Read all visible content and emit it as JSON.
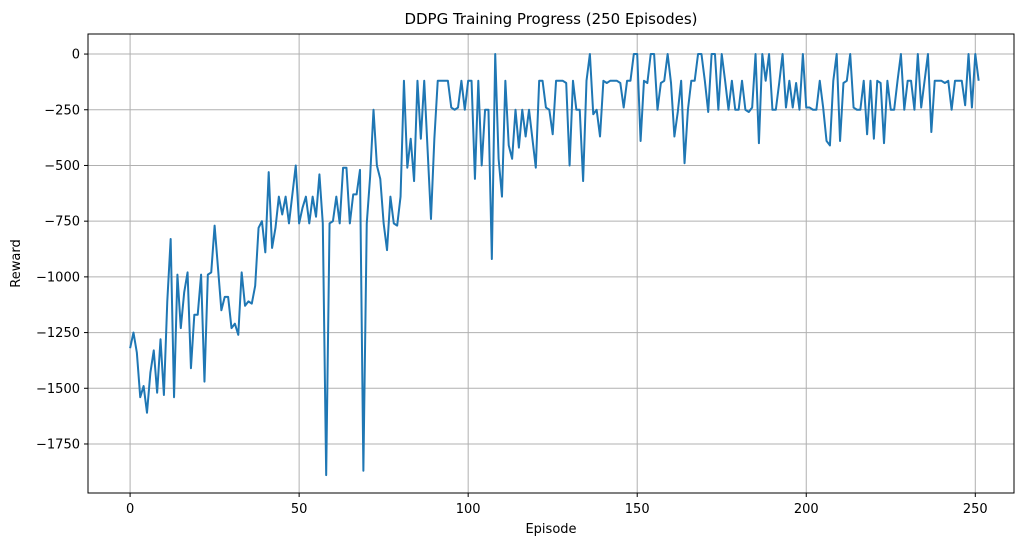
{
  "chart_data": {
    "type": "line",
    "title": "DDPG Training Progress (250 Episodes)",
    "xlabel": "Episode",
    "ylabel": "Reward",
    "xlim": [
      -12.45,
      261.45
    ],
    "ylim": [
      -1970,
      90
    ],
    "xticks": [
      0,
      50,
      100,
      150,
      200,
      250
    ],
    "yticks": [
      0,
      -250,
      -500,
      -750,
      -1000,
      -1250,
      -1500,
      -1750
    ],
    "grid": true,
    "legend": "none",
    "colors": {
      "line": "#1f77b4",
      "grid": "#b0b0b0",
      "axes": "#000000",
      "background": "#ffffff"
    },
    "series": [
      {
        "values": [
          -1320,
          -1250,
          -1340,
          -1540,
          -1490,
          -1610,
          -1430,
          -1330,
          -1520,
          -1280,
          -1530,
          -1110,
          -830,
          -1540,
          -990,
          -1230,
          -1070,
          -980,
          -1410,
          -1170,
          -1170,
          -990,
          -1470,
          -990,
          -980,
          -770,
          -960,
          -1150,
          -1090,
          -1090,
          -1230,
          -1210,
          -1260,
          -980,
          -1130,
          -1110,
          -1120,
          -1040,
          -780,
          -750,
          -890,
          -530,
          -870,
          -780,
          -640,
          -720,
          -640,
          -760,
          -630,
          -500,
          -760,
          -690,
          -640,
          -760,
          -640,
          -730,
          -540,
          -760,
          -1890,
          -760,
          -750,
          -640,
          -760,
          -510,
          -510,
          -760,
          -630,
          -630,
          -520,
          -1870,
          -760,
          -550,
          -250,
          -500,
          -560,
          -760,
          -880,
          -640,
          -760,
          -770,
          -640,
          -120,
          -510,
          -380,
          -570,
          -120,
          -380,
          -120,
          -430,
          -740,
          -380,
          -120,
          -120,
          -120,
          -120,
          -240,
          -250,
          -240,
          -120,
          -250,
          -120,
          -120,
          -560,
          -120,
          -500,
          -250,
          -250,
          -920,
          0,
          -470,
          -640,
          -120,
          -410,
          -470,
          -250,
          -420,
          -250,
          -370,
          -250,
          -380,
          -510,
          -120,
          -120,
          -240,
          -250,
          -360,
          -120,
          -120,
          -120,
          -130,
          -500,
          -120,
          -250,
          -250,
          -570,
          -120,
          0,
          -270,
          -250,
          -370,
          -120,
          -130,
          -120,
          -120,
          -120,
          -130,
          -240,
          -120,
          -120,
          0,
          0,
          -390,
          -120,
          -130,
          0,
          0,
          -250,
          -130,
          -120,
          0,
          -130,
          -370,
          -260,
          -120,
          -490,
          -250,
          -120,
          -120,
          0,
          0,
          -120,
          -260,
          0,
          0,
          -250,
          0,
          -120,
          -250,
          -120,
          -250,
          -250,
          -120,
          -250,
          -260,
          -240,
          0,
          -400,
          0,
          -120,
          0,
          -250,
          -250,
          -130,
          0,
          -240,
          -120,
          -240,
          -130,
          -250,
          0,
          -240,
          -240,
          -250,
          -250,
          -120,
          -240,
          -390,
          -410,
          -120,
          0,
          -390,
          -130,
          -120,
          0,
          -240,
          -250,
          -250,
          -120,
          -360,
          -120,
          -380,
          -120,
          -130,
          -400,
          -120,
          -250,
          -250,
          -120,
          0,
          -250,
          -120,
          -120,
          -250,
          0,
          -240,
          -120,
          0,
          -350,
          -120,
          -120,
          -120,
          -130,
          -120,
          -250,
          -120,
          -120,
          -120,
          -230,
          0,
          -240,
          0,
          -120
        ]
      }
    ]
  }
}
